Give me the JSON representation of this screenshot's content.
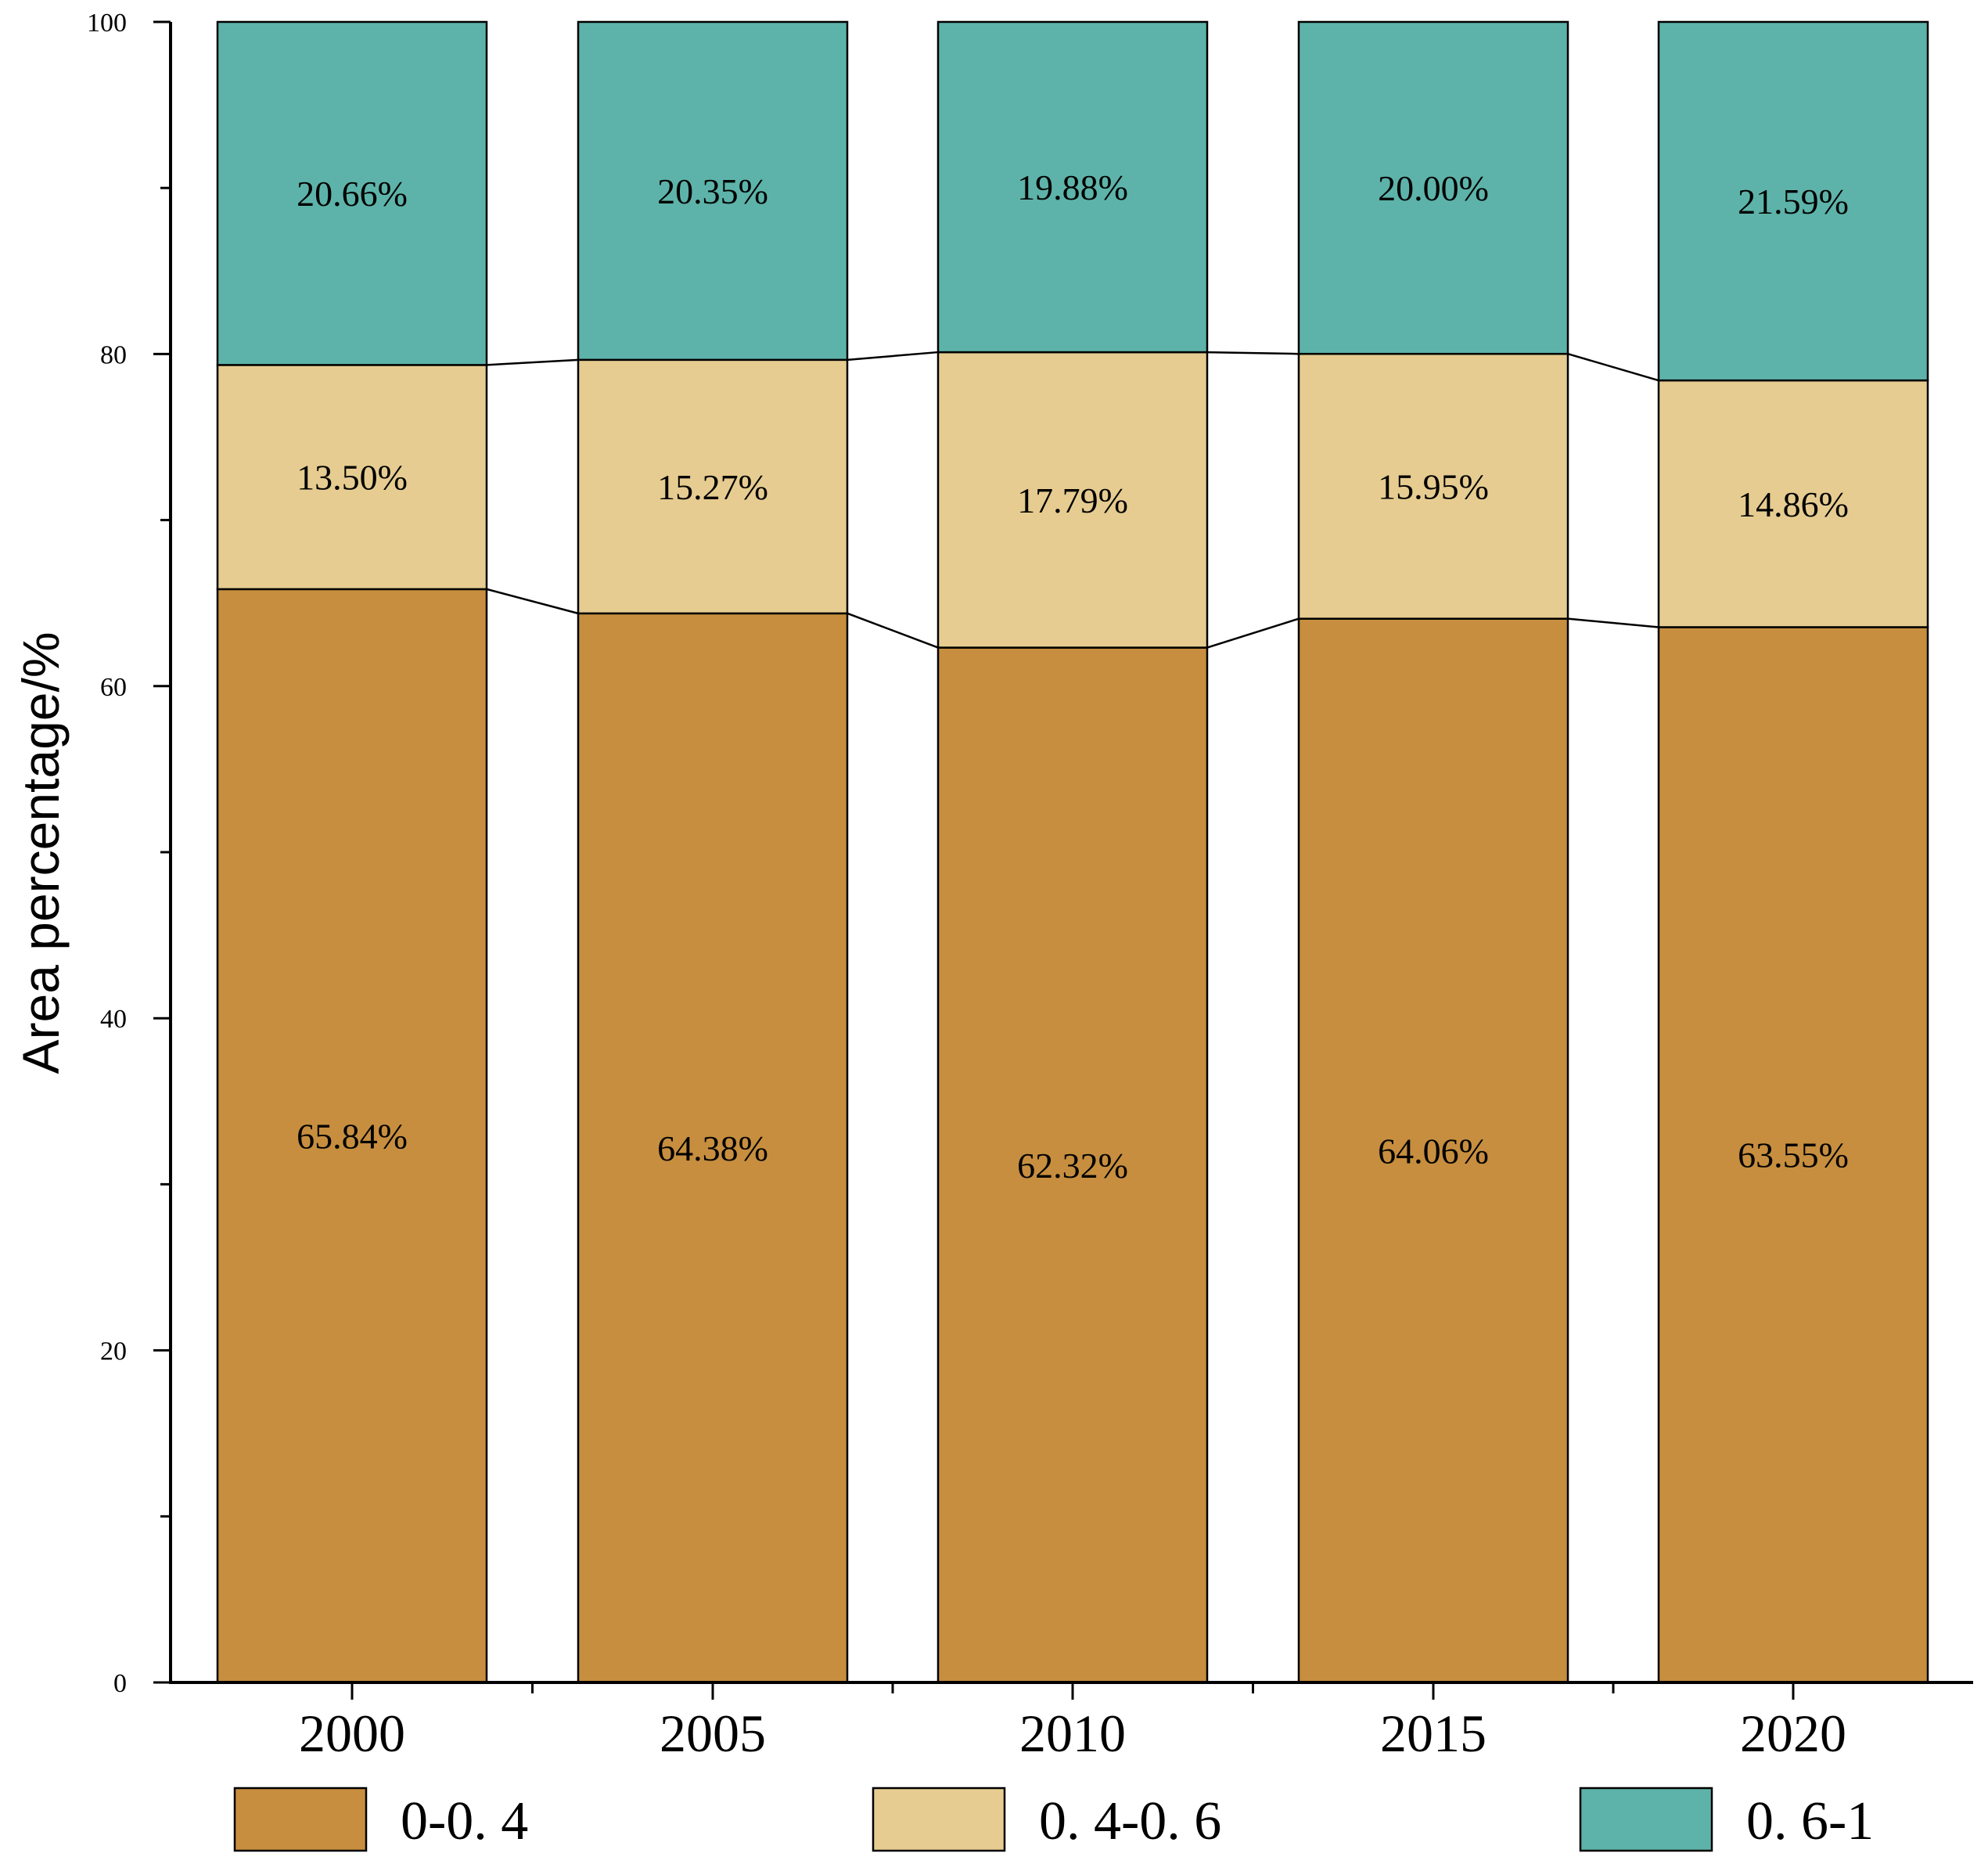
{
  "chart_data": {
    "type": "bar",
    "stacked": true,
    "title": "",
    "xlabel": "",
    "ylabel": "Area percentage/%",
    "ylim": [
      0,
      100
    ],
    "yticks": [
      0,
      20,
      40,
      60,
      80,
      100
    ],
    "categories": [
      "2000",
      "2005",
      "2010",
      "2015",
      "2020"
    ],
    "series": [
      {
        "name": "0-0. 4",
        "color": "#c68e3e",
        "values": [
          65.84,
          64.38,
          62.32,
          64.06,
          63.55
        ],
        "labels": [
          "65.84%",
          "64.38%",
          "62.32%",
          "64.06%",
          "63.55%"
        ]
      },
      {
        "name": "0. 4-0. 6",
        "color": "#e6cc90",
        "values": [
          13.5,
          15.27,
          17.79,
          15.95,
          14.86
        ],
        "labels": [
          "13.50%",
          "15.27%",
          "17.79%",
          "15.95%",
          "14.86%"
        ]
      },
      {
        "name": "0. 6-1",
        "color": "#5db3a9",
        "values": [
          20.66,
          20.35,
          19.88,
          20.0,
          21.59
        ],
        "labels": [
          "20.66%",
          "20.35%",
          "19.88%",
          "20.00%",
          "21.59%"
        ]
      }
    ],
    "legend": {
      "position": "bottom"
    },
    "grid": false,
    "connector_lines": true
  }
}
